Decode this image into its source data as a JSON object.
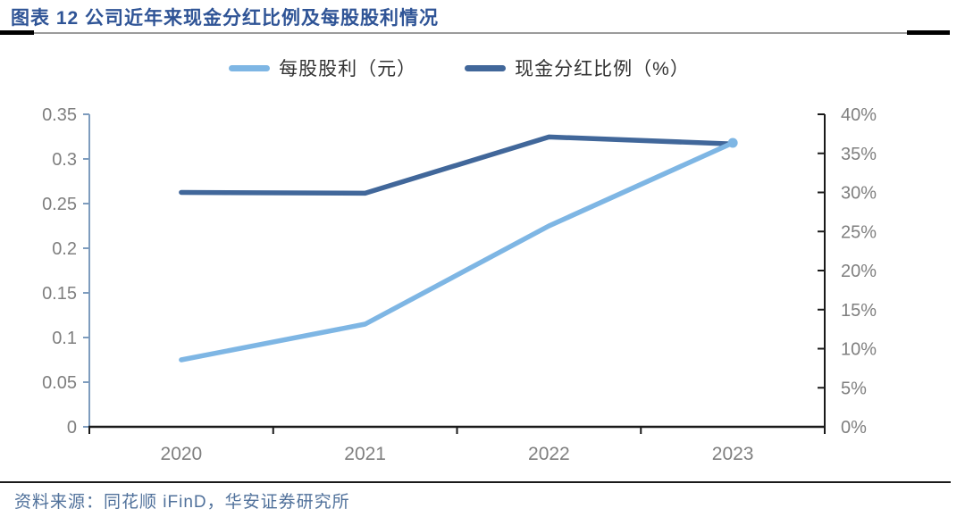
{
  "header": {
    "figure_label": "图表 12"
  },
  "footer": {
    "source_text": "资料来源：同花顺 iFinD，华安证券研究所"
  },
  "colors": {
    "title": "#2F5496",
    "footer_text": "#50719B",
    "tick_label": "#7F7F7F",
    "left_axis_line": "#7E9CBE",
    "black_axis": "#1A1A1A",
    "series_dividend": "#7EB6E4",
    "series_ratio": "#41679A",
    "rule_thin": "#9B9B9B",
    "rule_thick": "#000000"
  },
  "chart_data": {
    "type": "line",
    "title": "图表 12 公司近年来现金分红比例及每股股利情况",
    "categories": [
      "2020",
      "2021",
      "2022",
      "2023"
    ],
    "series": [
      {
        "name": "每股股利（元）",
        "axis": "left",
        "color": "#7EB6E4",
        "values": [
          0.075,
          0.115,
          0.225,
          0.318
        ],
        "end_marker": true
      },
      {
        "name": "现金分红比例（%）",
        "axis": "right",
        "color": "#41679A",
        "values": [
          30.0,
          29.9,
          37.1,
          36.2
        ],
        "end_marker": false
      }
    ],
    "left_axis": {
      "min": 0,
      "max": 0.35,
      "step": 0.05,
      "ticks": [
        "0",
        "0.05",
        "0.1",
        "0.15",
        "0.2",
        "0.25",
        "0.3",
        "0.35"
      ]
    },
    "right_axis": {
      "min": 0,
      "max": 40,
      "step": 5,
      "ticks": [
        "0%",
        "5%",
        "10%",
        "15%",
        "20%",
        "25%",
        "30%",
        "35%",
        "40%"
      ]
    },
    "legend_position": "top",
    "grid": false
  }
}
